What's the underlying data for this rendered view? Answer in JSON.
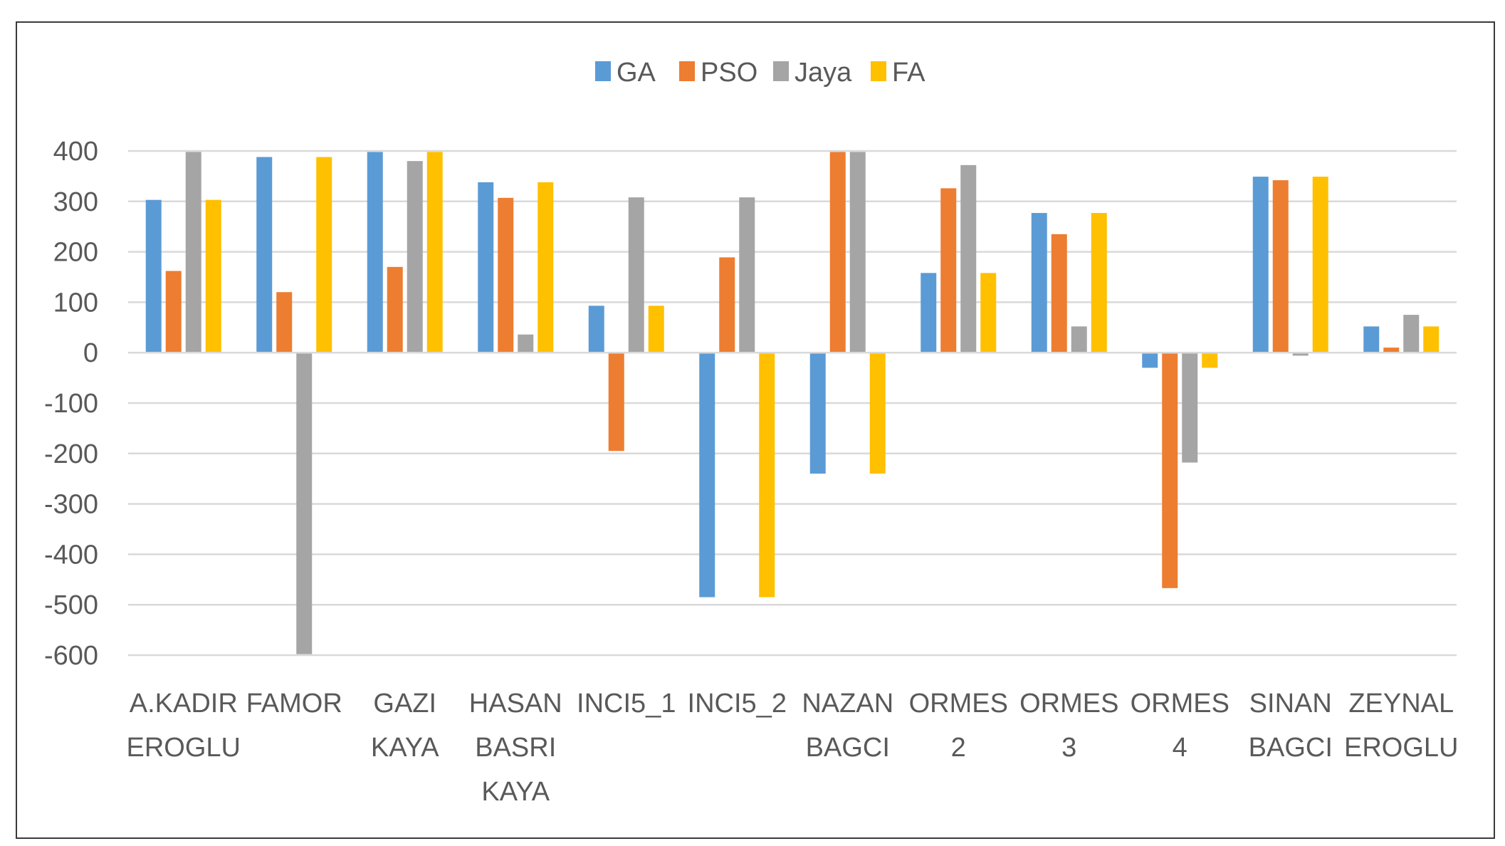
{
  "chart_data": {
    "type": "bar",
    "title": "",
    "xlabel": "",
    "ylabel": "",
    "ylim": [
      -600,
      400
    ],
    "yticks": [
      400,
      300,
      200,
      100,
      0,
      -100,
      -200,
      -300,
      -400,
      -500,
      -600
    ],
    "ytick_labels": [
      "400",
      "300",
      "200",
      "100",
      "0",
      "-100",
      "-200",
      "-300",
      "-400",
      "-500",
      "-600"
    ],
    "grid": true,
    "legend_position": "top-center",
    "categories": [
      [
        "A.KADIR",
        "EROGLU"
      ],
      [
        "FAMOR"
      ],
      [
        "GAZI",
        "KAYA"
      ],
      [
        "HASAN",
        "BASRI",
        "KAYA"
      ],
      [
        "INCI5_1"
      ],
      [
        "INCI5_2"
      ],
      [
        "NAZAN",
        "BAGCI"
      ],
      [
        "ORMES",
        "2"
      ],
      [
        "ORMES",
        "3"
      ],
      [
        "ORMES",
        "4"
      ],
      [
        "SINAN",
        "BAGCI"
      ],
      [
        "ZEYNAL",
        "EROGLU"
      ]
    ],
    "series": [
      {
        "name": "GA",
        "color": "#5B9BD5",
        "values": [
          303,
          388,
          398,
          338,
          93,
          -485,
          -240,
          158,
          277,
          -30,
          349,
          52
        ]
      },
      {
        "name": "PSO",
        "color": "#ED7D31",
        "values": [
          162,
          120,
          170,
          307,
          -195,
          189,
          398,
          326,
          235,
          -467,
          342,
          10
        ]
      },
      {
        "name": "Jaya",
        "color": "#A5A5A5",
        "values": [
          398,
          -598,
          380,
          36,
          308,
          308,
          398,
          372,
          52,
          -218,
          -6,
          75
        ]
      },
      {
        "name": "FA",
        "color": "#FFC000",
        "values": [
          303,
          388,
          398,
          338,
          93,
          -485,
          -240,
          158,
          277,
          -30,
          349,
          52
        ]
      }
    ]
  }
}
